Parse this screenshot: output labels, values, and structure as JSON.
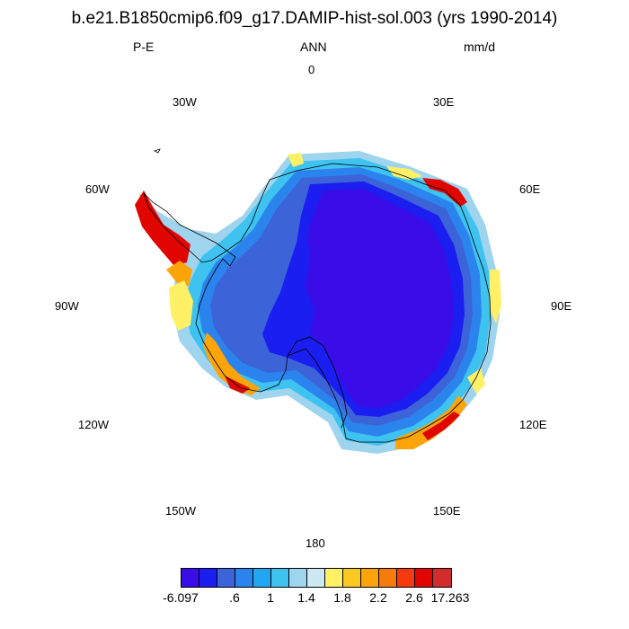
{
  "title": "b.e21.B1850cmip6.f09_g17.DAMIP-hist-sol.003 (yrs 1990-2014)",
  "left_label": "P-E",
  "center_label": "ANN",
  "right_label": "mm/d",
  "longitude_labels": {
    "lon_0": "0",
    "lon_30e": "30E",
    "lon_60e": "60E",
    "lon_90e": "90E",
    "lon_120e": "120E",
    "lon_150e": "150E",
    "lon_180": "180",
    "lon_150w": "150W",
    "lon_120w": "120W",
    "lon_90w": "90W",
    "lon_60w": "60W",
    "lon_30w": "30W"
  },
  "colorbar": {
    "colors": [
      "#3a0de8",
      "#1a1ef0",
      "#3c63d8",
      "#2b84ee",
      "#22a6f2",
      "#3ec2f0",
      "#9fd4ee",
      "#cce8f2",
      "#fff066",
      "#fcc821",
      "#fca40a",
      "#f57b0c",
      "#f53a0f",
      "#e10500",
      "#d32c2c"
    ],
    "labels": {
      "min": "-6.097",
      "l6": ".6",
      "l1": "1",
      "l14": "1.4",
      "l18": "1.8",
      "l22": "2.2",
      "l26": "2.6",
      "max": "17.263"
    }
  },
  "map_colors": {
    "ocean": "#ffffff",
    "interior": "#3a0de8",
    "inner_ring": "#1a1ef0",
    "mid_ring": "#3c63d8",
    "outer_ring_1": "#2b84ee",
    "outer_ring_2": "#3ec2f0",
    "coast_light": "#9fd4ee",
    "coast_yellow": "#fff066",
    "coast_orange": "#fca40a",
    "coast_red": "#e10500",
    "coastline": "#000000"
  }
}
